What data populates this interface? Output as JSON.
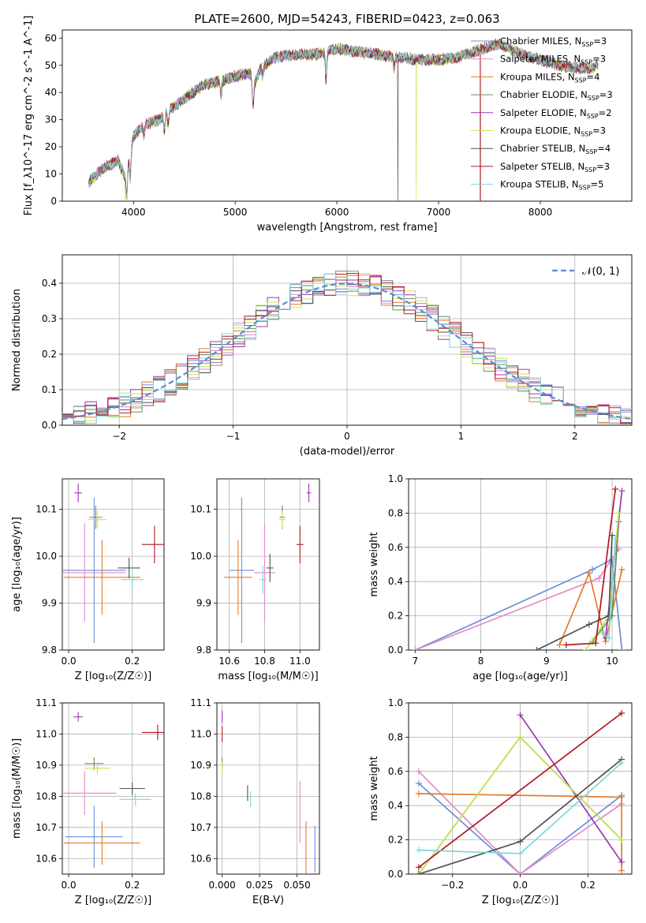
{
  "figure": {
    "title": "PLATE=2600, MJD=54243, FIBERID=0423, z=0.063"
  },
  "colors": {
    "chabrier_miles": "#6b8fd9",
    "salpeter_miles": "#e58ac6",
    "kroupa_miles": "#e37b2b",
    "chabrier_elodie": "#6c8f56",
    "salpeter_elodie": "#9b35b0",
    "kroupa_elodie": "#c8e550",
    "chabrier_stelib": "#505050",
    "salpeter_stelib": "#b01822",
    "kroupa_stelib": "#7fd6dc",
    "normal_curve": "#5b8bd8"
  },
  "chart_data": [
    {
      "id": "spectrum",
      "type": "line",
      "xlabel": "wavelength [Angstrom, rest frame]",
      "ylabel": "Flux [f_λ10^-17 erg cm^-2 s^-1 A^-1]",
      "xlim": [
        3300,
        8900
      ],
      "ylim": [
        0,
        63
      ],
      "xticks": [
        4000,
        5000,
        6000,
        7000,
        8000
      ],
      "yticks": [
        0,
        10,
        20,
        30,
        40,
        50,
        60
      ],
      "grid": false,
      "legend_position": "right",
      "legend": [
        {
          "text": "Chabrier MILES, N",
          "sub": "SSP",
          "eq": "=3",
          "color_key": "chabrier_miles"
        },
        {
          "text": "Salpeter MILES, N",
          "sub": "SSP",
          "eq": "=3",
          "color_key": "salpeter_miles"
        },
        {
          "text": "Kroupa MILES, N",
          "sub": "SSP",
          "eq": "=4",
          "color_key": "kroupa_miles"
        },
        {
          "text": "Chabrier ELODIE, N",
          "sub": "SSP",
          "eq": "=3",
          "color_key": "chabrier_elodie"
        },
        {
          "text": "Salpeter ELODIE, N",
          "sub": "SSP",
          "eq": "=2",
          "color_key": "salpeter_elodie"
        },
        {
          "text": "Kroupa ELODIE, N",
          "sub": "SSP",
          "eq": "=3",
          "color_key": "kroupa_elodie"
        },
        {
          "text": "Chabrier STELIB, N",
          "sub": "SSP",
          "eq": "=4",
          "color_key": "chabrier_stelib"
        },
        {
          "text": "Salpeter STELIB, N",
          "sub": "SSP",
          "eq": "=3",
          "color_key": "salpeter_stelib"
        },
        {
          "text": "Kroupa STELIB, N",
          "sub": "SSP",
          "eq": "=5",
          "color_key": "kroupa_stelib"
        }
      ],
      "continuum": [
        [
          3560,
          7
        ],
        [
          3700,
          12
        ],
        [
          3850,
          15
        ],
        [
          3920,
          8
        ],
        [
          4000,
          24
        ],
        [
          4100,
          28
        ],
        [
          4250,
          30
        ],
        [
          4400,
          35
        ],
        [
          4550,
          39
        ],
        [
          4700,
          43
        ],
        [
          4850,
          44
        ],
        [
          5000,
          46
        ],
        [
          5150,
          47
        ],
        [
          5180,
          42
        ],
        [
          5250,
          49
        ],
        [
          5400,
          53
        ],
        [
          5600,
          54
        ],
        [
          5800,
          54
        ],
        [
          5900,
          55
        ],
        [
          6000,
          56
        ],
        [
          6200,
          55
        ],
        [
          6400,
          54
        ],
        [
          6600,
          53
        ],
        [
          6800,
          52
        ],
        [
          7000,
          52
        ],
        [
          7200,
          53
        ],
        [
          7350,
          55
        ],
        [
          7500,
          57
        ],
        [
          7600,
          58
        ],
        [
          7700,
          56
        ],
        [
          7900,
          53
        ],
        [
          8100,
          51
        ],
        [
          8300,
          49
        ],
        [
          8500,
          49
        ],
        [
          8570,
          50
        ]
      ],
      "absorption_lines": [
        [
          3934,
          9
        ],
        [
          3969,
          9
        ],
        [
          4102,
          4
        ],
        [
          4304,
          6
        ],
        [
          4341,
          5
        ],
        [
          4861,
          5
        ],
        [
          5175,
          7
        ],
        [
          5270,
          3
        ],
        [
          5893,
          10
        ],
        [
          6563,
          4
        ]
      ],
      "dropouts": [
        {
          "x": 3920,
          "color_key": "kroupa_elodie"
        },
        {
          "x": 6600,
          "color_key": "chabrier_stelib"
        },
        {
          "x": 6780,
          "color_key": "kroupa_elodie"
        },
        {
          "x": 7410,
          "color_key": "salpeter_stelib"
        }
      ]
    },
    {
      "id": "residuals",
      "type": "histogram",
      "xlabel": "(data-model)/error",
      "ylabel": "Normed distribution",
      "xlim": [
        -2.5,
        2.5
      ],
      "ylim": [
        0,
        0.48
      ],
      "xticks": [
        -2,
        -1,
        0,
        1,
        2
      ],
      "yticks": [
        0.0,
        0.1,
        0.2,
        0.3,
        0.4
      ],
      "grid": true,
      "legend_position": "top-right",
      "legend": [
        {
          "text": "𝒩(0, 1)",
          "color_key": "normal_curve"
        }
      ],
      "bin_width": 0.1,
      "bin_start": -2.5,
      "n_bins": 50,
      "series_color_keys": [
        "chabrier_miles",
        "salpeter_miles",
        "kroupa_miles",
        "chabrier_elodie",
        "salpeter_elodie",
        "kroupa_elodie",
        "chabrier_stelib",
        "salpeter_stelib",
        "kroupa_stelib"
      ],
      "normal": {
        "mean": 0,
        "sigma": 1
      }
    },
    {
      "id": "age_vs_Z",
      "type": "errorbar",
      "xlabel": "Z [log₁₀(Z/Z☉)]",
      "ylabel": "age  [log₁₀(age/yr)]",
      "xlim": [
        -0.02,
        0.3
      ],
      "ylim": [
        9.8,
        10.165
      ],
      "xticks": [
        0.0,
        0.2
      ],
      "yticks": [
        9.8,
        9.9,
        10.0,
        10.1
      ],
      "grid": true,
      "points": [
        {
          "color_key": "chabrier_miles",
          "x": 0.08,
          "y": 9.97,
          "xerr": 0.1,
          "yerr": 0.155
        },
        {
          "color_key": "salpeter_miles",
          "x": 0.05,
          "y": 9.965,
          "xerr": 0.13,
          "yerr": 0.105
        },
        {
          "color_key": "kroupa_miles",
          "x": 0.105,
          "y": 9.955,
          "xerr": 0.12,
          "yerr": 0.08
        },
        {
          "color_key": "chabrier_elodie",
          "x": 0.085,
          "y": 10.083,
          "xerr": 0.02,
          "yerr": 0.025
        },
        {
          "color_key": "salpeter_elodie",
          "x": 0.03,
          "y": 10.135,
          "xerr": 0.012,
          "yerr": 0.02
        },
        {
          "color_key": "kroupa_elodie",
          "x": 0.09,
          "y": 10.078,
          "xerr": 0.03,
          "yerr": 0.018
        },
        {
          "color_key": "chabrier_stelib",
          "x": 0.19,
          "y": 9.975,
          "xerr": 0.035,
          "yerr": 0.022
        },
        {
          "color_key": "salpeter_stelib",
          "x": 0.27,
          "y": 10.025,
          "xerr": 0.04,
          "yerr": 0.04
        },
        {
          "color_key": "kroupa_stelib",
          "x": 0.2,
          "y": 9.95,
          "xerr": 0.035,
          "yerr": 0.03
        }
      ]
    },
    {
      "id": "age_vs_mass",
      "type": "errorbar",
      "xlabel": "mass [log₁₀(M/M☉)]",
      "ylabel": "",
      "xlim": [
        10.53,
        11.11
      ],
      "ylim": [
        9.8,
        10.165
      ],
      "xticks": [
        10.6,
        10.8,
        11.0
      ],
      "yticks": [
        9.8,
        9.9,
        10.0,
        10.1
      ],
      "grid": true,
      "points": [
        {
          "color_key": "chabrier_miles",
          "x": 10.67,
          "y": 9.97,
          "xerr": 0.07,
          "yerr": 0.155
        },
        {
          "color_key": "salpeter_miles",
          "x": 10.8,
          "y": 9.965,
          "xerr": 0.06,
          "yerr": 0.105
        },
        {
          "color_key": "kroupa_miles",
          "x": 10.65,
          "y": 9.955,
          "xerr": 0.08,
          "yerr": 0.08
        },
        {
          "color_key": "chabrier_elodie",
          "x": 10.9,
          "y": 10.083,
          "xerr": 0.015,
          "yerr": 0.025
        },
        {
          "color_key": "salpeter_elodie",
          "x": 11.05,
          "y": 10.135,
          "xerr": 0.012,
          "yerr": 0.02
        },
        {
          "color_key": "kroupa_elodie",
          "x": 10.9,
          "y": 10.078,
          "xerr": 0.02,
          "yerr": 0.018
        },
        {
          "color_key": "chabrier_stelib",
          "x": 10.83,
          "y": 9.975,
          "xerr": 0.02,
          "yerr": 0.03
        },
        {
          "color_key": "salpeter_stelib",
          "x": 11.0,
          "y": 10.025,
          "xerr": 0.02,
          "yerr": 0.04
        },
        {
          "color_key": "kroupa_stelib",
          "x": 10.79,
          "y": 9.95,
          "xerr": 0.02,
          "yerr": 0.03
        }
      ]
    },
    {
      "id": "mass_weight_vs_age",
      "type": "line",
      "xlabel": "age  [log₁₀(age/yr)]",
      "ylabel": "mass weight",
      "xlim": [
        6.9,
        10.3
      ],
      "ylim": [
        0,
        1.0
      ],
      "xticks": [
        7,
        8,
        9,
        10
      ],
      "yticks": [
        0.0,
        0.2,
        0.4,
        0.6,
        0.8,
        1.0
      ],
      "grid": true,
      "series": [
        {
          "color_key": "chabrier_miles",
          "x": [
            7.0,
            9.7,
            10.0,
            10.15
          ],
          "y": [
            0.0,
            0.47,
            0.53,
            0.0
          ]
        },
        {
          "color_key": "salpeter_miles",
          "x": [
            7.0,
            9.8,
            10.1
          ],
          "y": [
            0.0,
            0.42,
            0.59
          ]
        },
        {
          "color_key": "kroupa_miles",
          "x": [
            9.2,
            9.65,
            9.9,
            10.15
          ],
          "y": [
            0.03,
            0.45,
            0.05,
            0.47
          ]
        },
        {
          "color_key": "chabrier_elodie",
          "x": [
            9.7,
            10.0,
            10.1
          ],
          "y": [
            0.05,
            0.2,
            0.75
          ]
        },
        {
          "color_key": "salpeter_elodie",
          "x": [
            9.9,
            10.15
          ],
          "y": [
            0.07,
            0.93
          ]
        },
        {
          "color_key": "kroupa_elodie",
          "x": [
            9.6,
            9.95,
            10.1
          ],
          "y": [
            0.0,
            0.2,
            0.8
          ]
        },
        {
          "color_key": "chabrier_stelib",
          "x": [
            8.85,
            9.65,
            9.95,
            10.0
          ],
          "y": [
            0.0,
            0.15,
            0.2,
            0.67
          ]
        },
        {
          "color_key": "salpeter_stelib",
          "x": [
            9.3,
            9.75,
            10.05
          ],
          "y": [
            0.03,
            0.04,
            0.94
          ]
        },
        {
          "color_key": "kroupa_stelib",
          "x": [
            9.85,
            9.95,
            10.05
          ],
          "y": [
            0.1,
            0.07,
            0.65
          ]
        }
      ]
    },
    {
      "id": "mass_vs_Z",
      "type": "errorbar",
      "xlabel": "Z [log₁₀(Z/Z☉)]",
      "ylabel": "mass [log₁₀(M/M☉)]",
      "xlim": [
        -0.02,
        0.3
      ],
      "ylim": [
        10.55,
        11.1
      ],
      "xticks": [
        0.0,
        0.2
      ],
      "yticks": [
        10.6,
        10.7,
        10.8,
        10.9,
        11.0,
        11.1
      ],
      "grid": true,
      "points": [
        {
          "color_key": "chabrier_miles",
          "x": 0.08,
          "y": 10.67,
          "xerr": 0.09,
          "yerr": 0.1
        },
        {
          "color_key": "salpeter_miles",
          "x": 0.05,
          "y": 10.81,
          "xerr": 0.1,
          "yerr": 0.07
        },
        {
          "color_key": "kroupa_miles",
          "x": 0.105,
          "y": 10.65,
          "xerr": 0.12,
          "yerr": 0.07
        },
        {
          "color_key": "chabrier_elodie",
          "x": 0.08,
          "y": 10.905,
          "xerr": 0.03,
          "yerr": 0.02
        },
        {
          "color_key": "salpeter_elodie",
          "x": 0.03,
          "y": 11.055,
          "xerr": 0.015,
          "yerr": 0.015
        },
        {
          "color_key": "kroupa_elodie",
          "x": 0.09,
          "y": 10.89,
          "xerr": 0.04,
          "yerr": 0.02
        },
        {
          "color_key": "chabrier_stelib",
          "x": 0.2,
          "y": 10.825,
          "xerr": 0.04,
          "yerr": 0.02
        },
        {
          "color_key": "salpeter_stelib",
          "x": 0.28,
          "y": 11.005,
          "xerr": 0.05,
          "yerr": 0.025
        },
        {
          "color_key": "kroupa_stelib",
          "x": 0.21,
          "y": 10.79,
          "xerr": 0.05,
          "yerr": 0.02
        }
      ]
    },
    {
      "id": "mass_vs_ebv",
      "type": "errorbar",
      "xlabel": "E(B-V)",
      "ylabel": "",
      "xlim": [
        -0.0035,
        0.065
      ],
      "ylim": [
        10.55,
        11.1
      ],
      "xticks": [
        0.0,
        0.025,
        0.05
      ],
      "xtick_labels": [
        "0.000",
        "0.025",
        "0.050"
      ],
      "yticks": [
        10.6,
        10.7,
        10.8,
        10.9,
        11.0,
        11.1
      ],
      "grid": true,
      "points": [
        {
          "color_key": "chabrier_miles",
          "x": 0.062,
          "y": 10.63,
          "xerr": 0,
          "yerr": 0.075
        },
        {
          "color_key": "salpeter_miles",
          "x": 0.052,
          "y": 10.75,
          "xerr": 0,
          "yerr": 0.1
        },
        {
          "color_key": "kroupa_miles",
          "x": 0.056,
          "y": 10.61,
          "xerr": 0,
          "yerr": 0.11
        },
        {
          "color_key": "chabrier_elodie",
          "x": 0.0,
          "y": 10.905,
          "xerr": 0,
          "yerr": 0.02
        },
        {
          "color_key": "salpeter_elodie",
          "x": 0.0,
          "y": 11.055,
          "xerr": 0,
          "yerr": 0.02
        },
        {
          "color_key": "kroupa_elodie",
          "x": 0.0,
          "y": 10.89,
          "xerr": 0,
          "yerr": 0.02
        },
        {
          "color_key": "chabrier_stelib",
          "x": 0.017,
          "y": 10.81,
          "xerr": 0,
          "yerr": 0.025
        },
        {
          "color_key": "salpeter_stelib",
          "x": 0.0,
          "y": 11.0,
          "xerr": 0,
          "yerr": 0.025
        },
        {
          "color_key": "kroupa_stelib",
          "x": 0.019,
          "y": 10.79,
          "xerr": 0,
          "yerr": 0.025
        }
      ]
    },
    {
      "id": "mass_weight_vs_Z",
      "type": "line",
      "xlabel": "Z [log₁₀(Z/Z☉)]",
      "ylabel": "mass weight",
      "xlim": [
        -0.33,
        0.33
      ],
      "ylim": [
        0,
        1.0
      ],
      "xticks": [
        -0.2,
        0.0,
        0.2
      ],
      "xtick_labels": [
        "−0.2",
        "0.0",
        "0.2"
      ],
      "yticks": [
        0.0,
        0.2,
        0.4,
        0.6,
        0.8,
        1.0
      ],
      "grid": true,
      "series": [
        {
          "color_key": "chabrier_miles",
          "x": [
            -0.3,
            0.0,
            0.3
          ],
          "y": [
            0.53,
            0.0,
            0.46
          ]
        },
        {
          "color_key": "salpeter_miles",
          "x": [
            -0.3,
            0.0,
            0.3
          ],
          "y": [
            0.6,
            0.0,
            0.41
          ]
        },
        {
          "color_key": "kroupa_miles",
          "x": [
            -0.3,
            0.3,
            0.3
          ],
          "y": [
            0.47,
            0.45,
            0.02
          ]
        },
        {
          "color_key": "chabrier_elodie",
          "x": [
            -0.3,
            0.0,
            0.3
          ],
          "y": [
            0.0,
            0.8,
            0.2
          ]
        },
        {
          "color_key": "salpeter_elodie",
          "x": [
            0.0,
            0.3
          ],
          "y": [
            0.93,
            0.07
          ]
        },
        {
          "color_key": "kroupa_elodie",
          "x": [
            -0.3,
            0.0,
            0.3
          ],
          "y": [
            0.0,
            0.8,
            0.2
          ]
        },
        {
          "color_key": "chabrier_stelib",
          "x": [
            -0.3,
            0.0,
            0.3
          ],
          "y": [
            0.0,
            0.19,
            0.67
          ]
        },
        {
          "color_key": "salpeter_stelib",
          "x": [
            -0.3,
            0.3
          ],
          "y": [
            0.04,
            0.94
          ]
        },
        {
          "color_key": "kroupa_stelib",
          "x": [
            -0.3,
            0.0,
            0.3
          ],
          "y": [
            0.14,
            0.12,
            0.65
          ]
        }
      ]
    }
  ]
}
